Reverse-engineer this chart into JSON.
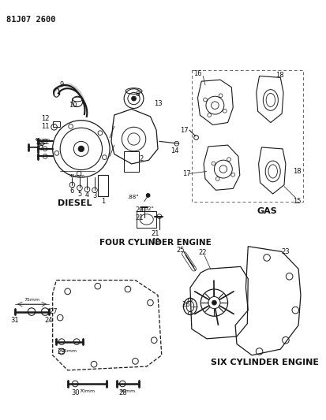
{
  "title": "81J07 2600",
  "bg_color": "#ffffff",
  "line_color": "#1a1a1a",
  "text_color": "#111111",
  "fig_width": 4.14,
  "fig_height": 5.33,
  "dpi": 100,
  "labels": {
    "diesel": "DIESEL",
    "four_cyl": "FOUR CYLINDER ENGINE",
    "gas": "GAS",
    "six_cyl": "SIX CYLINDER ENGINE"
  }
}
